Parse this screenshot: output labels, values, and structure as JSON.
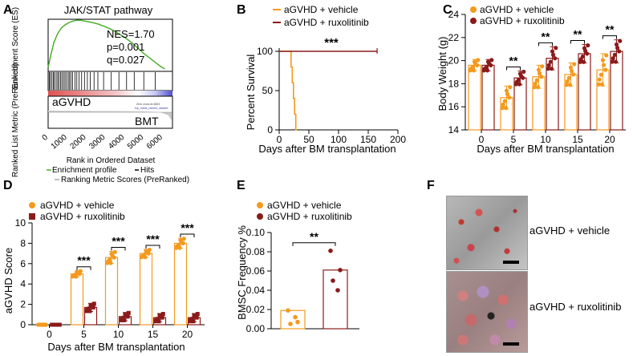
{
  "colors": {
    "vehicle": "#f39a1e",
    "ruxolitinib": "#8b1a1a",
    "es_curve": "#4caf2f",
    "axis": "#000000",
    "heat_high": "#e05050",
    "heat_low": "#5050d0"
  },
  "panel_letters": [
    "A",
    "B",
    "C",
    "D",
    "E",
    "F"
  ],
  "chart_data": [
    {
      "panel": "A",
      "type": "line",
      "title": "JAK/STAT pathway",
      "es_axis_label": "Enrichment Score (ES)",
      "rank_axis_label": "Ranked List Metric (PreRanked)",
      "xlabel": "Rank in Ordered Dataset",
      "x_ticks": [
        "0",
        "1000",
        "2000",
        "3000",
        "4000",
        "5000",
        "6000"
      ],
      "xlim": [
        0,
        6500
      ],
      "stats": [
        "NES=1.70",
        "p=0.001",
        "q=0.027"
      ],
      "es_curve": {
        "x": [
          0,
          150,
          300,
          500,
          700,
          900,
          1100,
          1300,
          1500,
          1700,
          1900,
          2100,
          2300,
          2600,
          2900,
          3200,
          3500,
          3800,
          4100,
          4400,
          4700,
          5000,
          5300,
          5600,
          5900,
          6100
        ],
        "y": [
          0.02,
          0.2,
          0.36,
          0.48,
          0.56,
          0.6,
          0.63,
          0.65,
          0.66,
          0.66,
          0.65,
          0.64,
          0.63,
          0.61,
          0.58,
          0.55,
          0.51,
          0.46,
          0.41,
          0.35,
          0.28,
          0.21,
          0.15,
          0.09,
          0.03,
          0.0
        ]
      },
      "hits": [
        60,
        120,
        200,
        280,
        330,
        420,
        500,
        560,
        650,
        720,
        800,
        880,
        960,
        1050,
        1120,
        1200,
        1280,
        1400,
        1500,
        1620,
        1750,
        1900,
        2050,
        2200,
        2400,
        2600,
        2900,
        3300,
        3700,
        4100,
        4500,
        5000,
        5600
      ],
      "group_labels": [
        "aGVHD",
        "BMT"
      ],
      "legend": [
        "Enrichment profile",
        "Hits",
        "Ranking Metric Scores (PreRanked)"
      ],
      "heatmap_fine_print": [
        "Zero cross at 4803",
        "top_metal_ranked_dataset"
      ]
    },
    {
      "panel": "B",
      "type": "line",
      "xlabel": "Days after BM transplantation",
      "ylabel": "Percent Survival",
      "xlim": [
        0,
        200
      ],
      "ylim": [
        0,
        100
      ],
      "x_ticks": [
        "0",
        "50",
        "100",
        "150",
        "200"
      ],
      "y_ticks": [
        "0",
        "50",
        "100"
      ],
      "series": [
        {
          "name": "aGVHD + vehicle",
          "steps": [
            [
              0,
              100
            ],
            [
              20,
              100
            ],
            [
              20,
              80
            ],
            [
              22,
              80
            ],
            [
              22,
              60
            ],
            [
              24,
              60
            ],
            [
              24,
              40
            ],
            [
              26,
              40
            ],
            [
              26,
              20
            ],
            [
              28,
              20
            ],
            [
              28,
              0
            ],
            [
              30,
              0
            ]
          ]
        },
        {
          "name": "aGVHD + ruxolitinib",
          "steps": [
            [
              0,
              100
            ],
            [
              165,
              100
            ]
          ]
        }
      ],
      "significance": "***"
    },
    {
      "panel": "C",
      "type": "bar",
      "xlabel": "Days after BM transplantation",
      "ylabel": "Body Weight (g)",
      "ylim": [
        14,
        24
      ],
      "y_ticks": [
        "14",
        "16",
        "18",
        "20",
        "22",
        "24"
      ],
      "categories": [
        "0",
        "5",
        "10",
        "15",
        "20"
      ],
      "series": [
        {
          "name": "aGVHD + vehicle",
          "values": [
            19.6,
            16.8,
            18.6,
            18.8,
            19.2
          ],
          "errors": [
            0.5,
            1.0,
            1.0,
            1.0,
            1.4
          ]
        },
        {
          "name": "aGVHD + ruxolitinib",
          "values": [
            19.6,
            18.5,
            20.2,
            20.6,
            20.8
          ],
          "errors": [
            0.5,
            0.6,
            1.0,
            0.8,
            1.0
          ]
        }
      ],
      "significance": [
        "",
        "**",
        "**",
        "**",
        "**"
      ]
    },
    {
      "panel": "D",
      "type": "bar",
      "xlabel": "Days after BM transplantation",
      "ylabel": "aGVHD Score",
      "ylim": [
        0,
        10
      ],
      "y_ticks": [
        "0",
        "2",
        "4",
        "6",
        "8",
        "10"
      ],
      "categories": [
        "0",
        "5",
        "10",
        "15",
        "20"
      ],
      "series": [
        {
          "name": "aGVHD + vehicle",
          "values": [
            0,
            5.0,
            6.6,
            7.0,
            8.0
          ],
          "errors": [
            0,
            0.3,
            0.6,
            0.4,
            0.5
          ]
        },
        {
          "name": "aGVHD + ruxolitinib",
          "values": [
            0,
            1.7,
            0.8,
            0.7,
            0.7
          ],
          "errors": [
            0,
            0.4,
            0.4,
            0.4,
            0.4
          ]
        }
      ],
      "significance": [
        "",
        "***",
        "***",
        "***",
        "***"
      ]
    },
    {
      "panel": "E",
      "type": "bar",
      "ylabel": "BMSC Frequency %",
      "ylim": [
        0,
        0.1
      ],
      "y_ticks": [
        "0.00",
        "0.02",
        "0.04",
        "0.06",
        "0.08",
        "0.10"
      ],
      "categories": [
        "aGVHD + vehicle",
        "aGVHD + ruxolitinib"
      ],
      "values": [
        0.019,
        0.061
      ],
      "points": [
        [
          0.019,
          0.007,
          0.005,
          0.012
        ],
        [
          0.081,
          0.061,
          0.05,
          0.04
        ]
      ],
      "significance": "**"
    }
  ],
  "panel_f": {
    "images": [
      {
        "label": "aGVHD + vehicle"
      },
      {
        "label": "aGVHD  + ruxolitinib"
      }
    ]
  }
}
